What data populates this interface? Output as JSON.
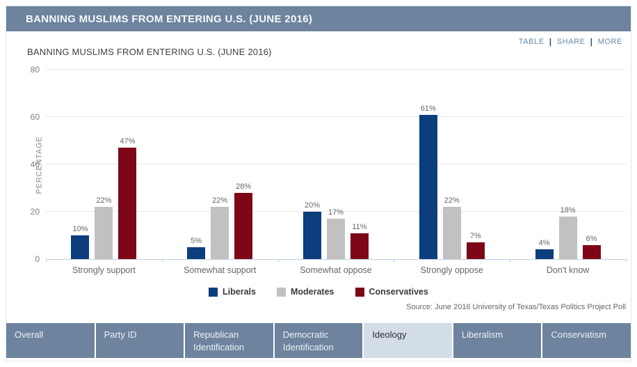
{
  "header": {
    "title": "BANNING MUSLIMS FROM ENTERING U.S. (JUNE 2016)"
  },
  "toolbar": {
    "links": [
      "TABLE",
      "SHARE",
      "MORE"
    ]
  },
  "chart_data": {
    "type": "bar",
    "title": "BANNING MUSLIMS FROM ENTERING U.S. (JUNE 2016)",
    "categories": [
      "Strongly support",
      "Somewhat support",
      "Somewhat oppose",
      "Strongly oppose",
      "Don't know"
    ],
    "series": [
      {
        "name": "Liberals",
        "color": "#0c3d7c",
        "values": [
          10,
          5,
          20,
          61,
          4
        ]
      },
      {
        "name": "Moderates",
        "color": "#c2c1c1",
        "values": [
          22,
          22,
          17,
          22,
          18
        ]
      },
      {
        "name": "Conservatives",
        "color": "#7e0717",
        "values": [
          47,
          28,
          11,
          7,
          6
        ]
      }
    ],
    "ylabel": "PERCENTAGE",
    "xlabel": "",
    "yticks": [
      0,
      20,
      40,
      60,
      80
    ],
    "ylim": [
      0,
      80
    ],
    "grid": true,
    "legend_position": "bottom",
    "value_suffix": "%",
    "source": "Source: June 2016 University of Texas/Texas Politics Project Poll"
  },
  "tabs": [
    {
      "label": "Overall",
      "active": false
    },
    {
      "label": "Party ID",
      "active": false
    },
    {
      "label": "Republican Identification",
      "active": false
    },
    {
      "label": "Democratic Identification",
      "active": false
    },
    {
      "label": "Ideology",
      "active": true
    },
    {
      "label": "Liberalism",
      "active": false
    },
    {
      "label": "Conservatism",
      "active": false
    }
  ]
}
